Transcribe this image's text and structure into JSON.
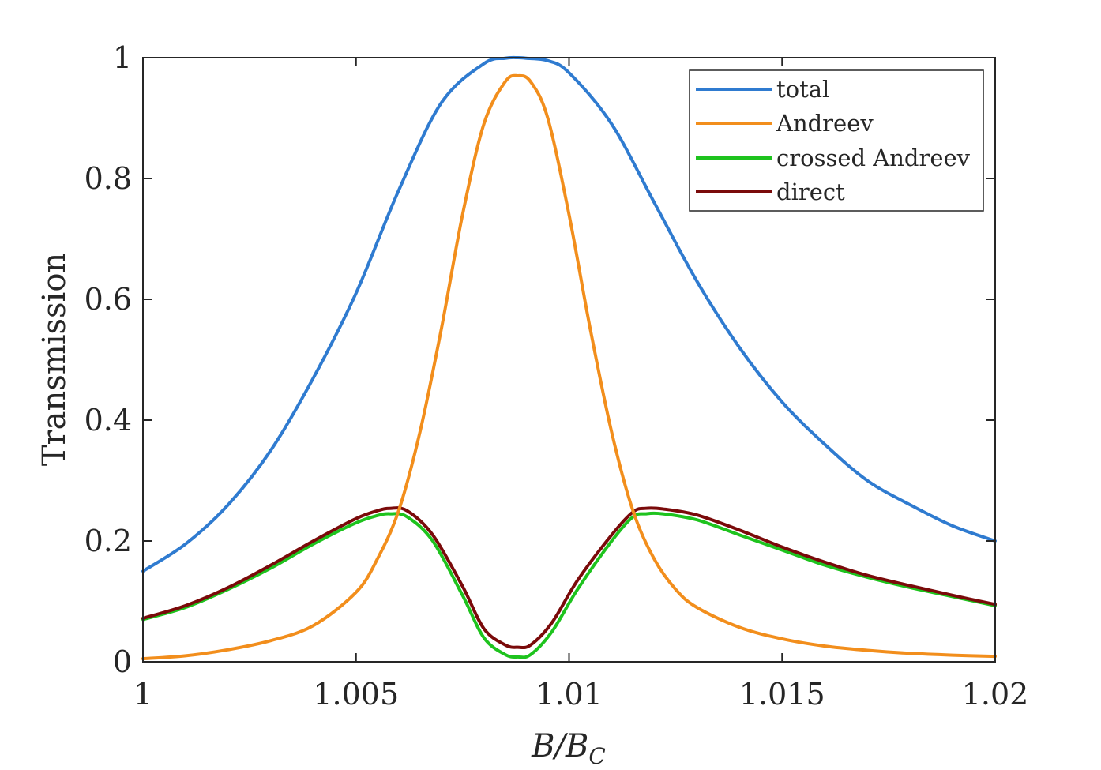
{
  "chart_data": {
    "type": "line",
    "title": "",
    "xlabel": "B/B",
    "xlabel_subscript": "C",
    "ylabel": "Transmission",
    "xlim": [
      1.0,
      1.02
    ],
    "ylim": [
      0,
      1
    ],
    "xticks": [
      1.0,
      1.005,
      1.01,
      1.015,
      1.02
    ],
    "xtick_labels": [
      "1",
      "1.005",
      "1.01",
      "1.015",
      "1.02"
    ],
    "yticks": [
      0,
      0.2,
      0.4,
      0.6,
      0.8,
      1.0
    ],
    "ytick_labels": [
      "0",
      "0.2",
      "0.4",
      "0.6",
      "0.8",
      "1"
    ],
    "grid": false,
    "legend_position": "top-right",
    "series": [
      {
        "name": "total",
        "color": "#2f7bd0",
        "x": [
          1.0,
          1.001,
          1.002,
          1.003,
          1.004,
          1.005,
          1.006,
          1.007,
          1.008,
          1.0085,
          1.0088,
          1.009,
          1.0095,
          1.01,
          1.011,
          1.012,
          1.013,
          1.014,
          1.015,
          1.016,
          1.017,
          1.018,
          1.019,
          1.02
        ],
        "values": [
          0.15,
          0.195,
          0.26,
          0.35,
          0.47,
          0.61,
          0.78,
          0.925,
          0.99,
          0.999,
          1.0,
          0.999,
          0.995,
          0.975,
          0.89,
          0.76,
          0.63,
          0.52,
          0.43,
          0.36,
          0.3,
          0.26,
          0.225,
          0.2
        ]
      },
      {
        "name": "Andreev",
        "color": "#f28e1c",
        "x": [
          1.0,
          1.001,
          1.002,
          1.003,
          1.004,
          1.005,
          1.0055,
          1.006,
          1.0065,
          1.007,
          1.0075,
          1.008,
          1.0085,
          1.0088,
          1.0091,
          1.0095,
          1.01,
          1.0105,
          1.011,
          1.0115,
          1.012,
          1.0125,
          1.013,
          1.014,
          1.015,
          1.016,
          1.017,
          1.018,
          1.019,
          1.02
        ],
        "values": [
          0.005,
          0.01,
          0.02,
          0.035,
          0.06,
          0.115,
          0.17,
          0.25,
          0.38,
          0.55,
          0.74,
          0.89,
          0.96,
          0.97,
          0.96,
          0.9,
          0.74,
          0.55,
          0.38,
          0.25,
          0.17,
          0.12,
          0.09,
          0.057,
          0.038,
          0.026,
          0.019,
          0.014,
          0.011,
          0.009
        ]
      },
      {
        "name": "crossed Andreev",
        "color": "#1ec31e",
        "x": [
          1.0,
          1.001,
          1.002,
          1.003,
          1.004,
          1.005,
          1.0055,
          1.0058,
          1.0062,
          1.0068,
          1.0075,
          1.008,
          1.0085,
          1.0088,
          1.0091,
          1.0096,
          1.0102,
          1.011,
          1.0115,
          1.0118,
          1.0122,
          1.013,
          1.014,
          1.015,
          1.016,
          1.017,
          1.018,
          1.019,
          1.02
        ],
        "values": [
          0.07,
          0.09,
          0.12,
          0.155,
          0.195,
          0.23,
          0.242,
          0.245,
          0.24,
          0.2,
          0.11,
          0.04,
          0.012,
          0.008,
          0.012,
          0.05,
          0.12,
          0.2,
          0.24,
          0.245,
          0.245,
          0.235,
          0.21,
          0.185,
          0.16,
          0.14,
          0.123,
          0.108,
          0.093
        ]
      },
      {
        "name": "direct",
        "color": "#7a0a0a",
        "x": [
          1.0,
          1.001,
          1.002,
          1.003,
          1.004,
          1.005,
          1.0055,
          1.0058,
          1.0062,
          1.0068,
          1.0075,
          1.008,
          1.0085,
          1.0088,
          1.0091,
          1.0096,
          1.0102,
          1.011,
          1.0115,
          1.0118,
          1.0122,
          1.013,
          1.014,
          1.015,
          1.016,
          1.017,
          1.018,
          1.019,
          1.02
        ],
        "values": [
          0.072,
          0.093,
          0.123,
          0.16,
          0.2,
          0.237,
          0.25,
          0.254,
          0.25,
          0.21,
          0.125,
          0.055,
          0.028,
          0.024,
          0.028,
          0.065,
          0.135,
          0.21,
          0.248,
          0.254,
          0.253,
          0.243,
          0.218,
          0.19,
          0.165,
          0.143,
          0.126,
          0.11,
          0.095
        ]
      }
    ]
  }
}
